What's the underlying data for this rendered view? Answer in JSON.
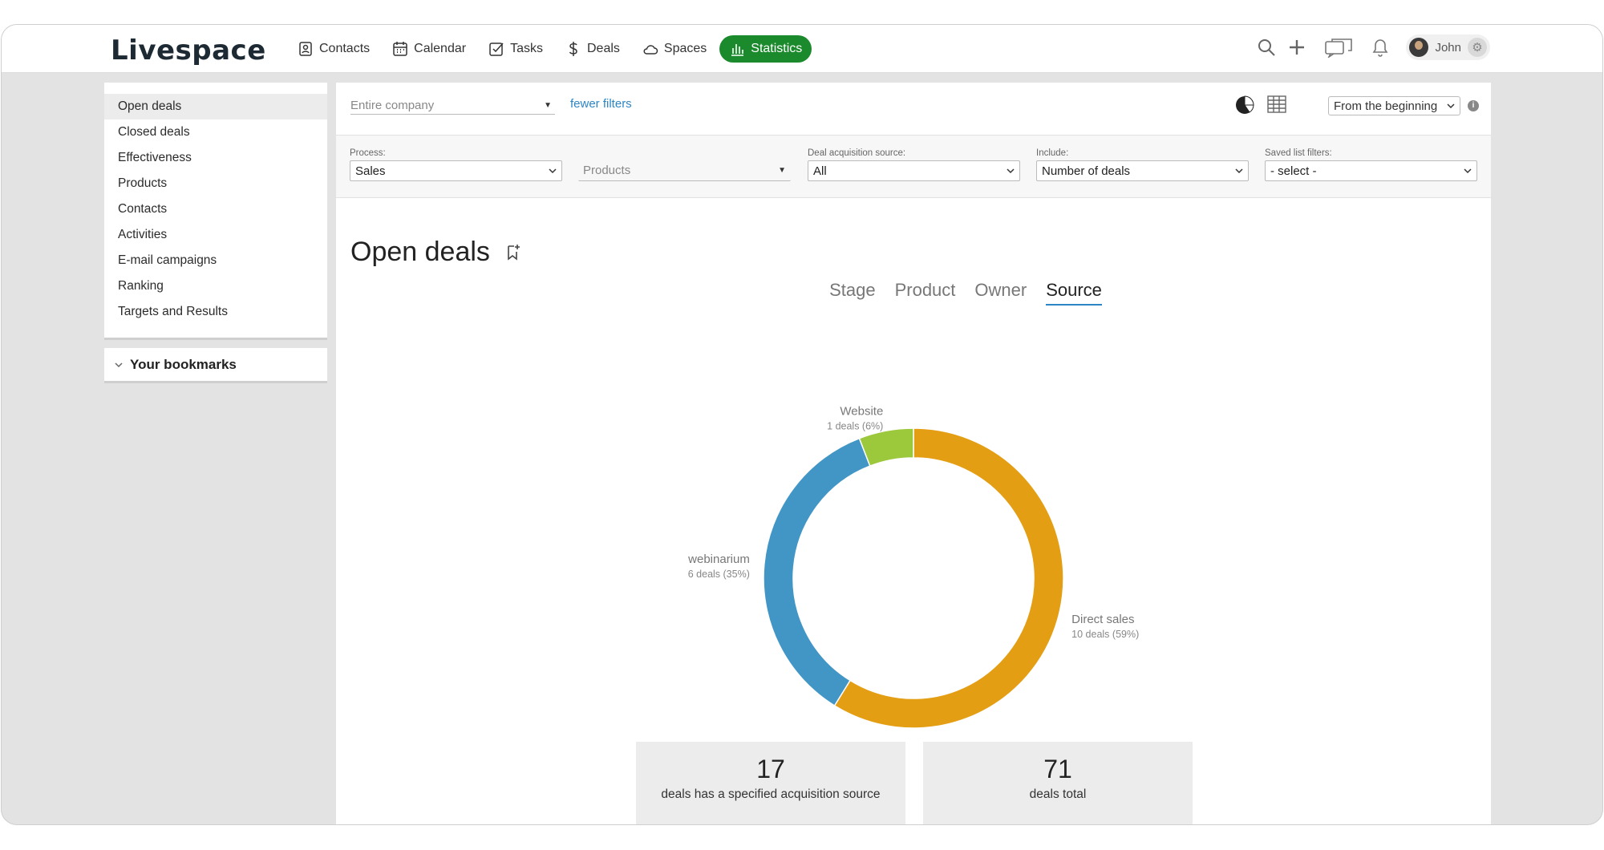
{
  "app": {
    "logo": "Livespace"
  },
  "nav": [
    {
      "label": "Contacts"
    },
    {
      "label": "Calendar"
    },
    {
      "label": "Tasks"
    },
    {
      "label": "Deals"
    },
    {
      "label": "Spaces"
    },
    {
      "label": "Statistics",
      "active": true
    }
  ],
  "user": {
    "name": "John"
  },
  "sidebar": {
    "items": [
      {
        "label": "Open deals",
        "active": true
      },
      {
        "label": "Closed deals"
      },
      {
        "label": "Effectiveness"
      },
      {
        "label": "Products"
      },
      {
        "label": "Contacts"
      },
      {
        "label": "Activities"
      },
      {
        "label": "E-mail campaigns"
      },
      {
        "label": "Ranking"
      },
      {
        "label": "Targets and Results"
      }
    ],
    "bookmarks": "Your bookmarks"
  },
  "filters": {
    "company_placeholder": "Entire company",
    "fewer_filters": "fewer filters",
    "period": "From the beginning",
    "process": {
      "label": "Process:",
      "value": "Sales"
    },
    "products": {
      "label": "",
      "value": "Products"
    },
    "source": {
      "label": "Deal acquisition source:",
      "value": "All"
    },
    "include": {
      "label": "Include:",
      "value": "Number of deals"
    },
    "saved": {
      "label": "Saved list filters:",
      "value": "- select -"
    }
  },
  "page": {
    "title": "Open deals"
  },
  "tabs": [
    {
      "label": "Stage"
    },
    {
      "label": "Product"
    },
    {
      "label": "Owner"
    },
    {
      "label": "Source",
      "active": true
    }
  ],
  "chart_data": {
    "type": "pie",
    "subtype": "donut",
    "slices": [
      {
        "name": "Direct sales",
        "value": 10,
        "percent": 59,
        "label": "10 deals (59%)",
        "color": "#e39e14"
      },
      {
        "name": "webinarium",
        "value": 6,
        "percent": 35,
        "label": "6 deals (35%)",
        "color": "#4196c6"
      },
      {
        "name": "Website",
        "value": 1,
        "percent": 6,
        "label": "1 deals (6%)",
        "color": "#9cc83c"
      }
    ]
  },
  "stats": [
    {
      "value": "17",
      "label": "deals has a specified acquisition source"
    },
    {
      "value": "71",
      "label": "deals total"
    }
  ],
  "colors": {
    "accent": "#1b8a2c",
    "link": "#2c86c6"
  }
}
